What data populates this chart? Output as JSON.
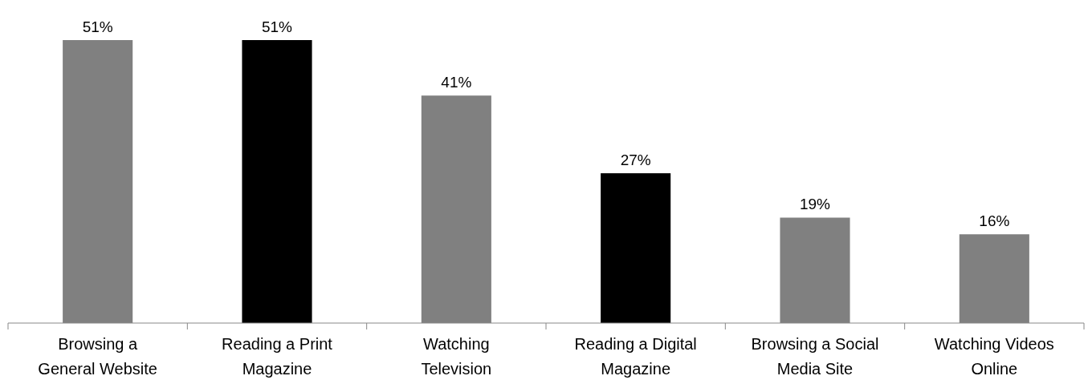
{
  "chart_data": {
    "type": "bar",
    "categories": [
      "Browsing a\nGeneral Website",
      "Reading a Print\nMagazine",
      "Watching\nTelevision",
      "Reading a Digital\nMagazine",
      "Browsing a Social\nMedia Site",
      "Watching Videos\nOnline"
    ],
    "values": [
      51,
      51,
      41,
      27,
      19,
      16
    ],
    "colors": [
      "#808080",
      "#000000",
      "#808080",
      "#000000",
      "#808080",
      "#808080"
    ],
    "value_labels": [
      "51%",
      "51%",
      "41%",
      "27%",
      "19%",
      "16%"
    ]
  }
}
